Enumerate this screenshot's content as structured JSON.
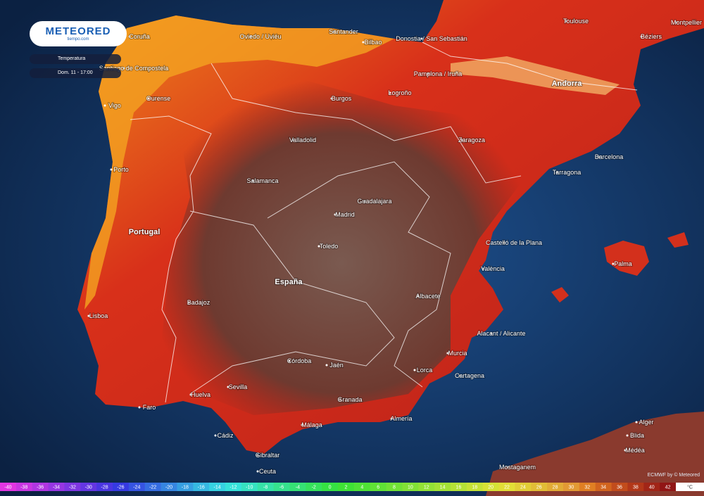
{
  "logo": {
    "brand": "METEORED",
    "site": "tiempo.com"
  },
  "panel": {
    "variable": "Temperatura",
    "time": "Dom. 11 - 17:00"
  },
  "labels": {
    "countries": [
      "Portugal",
      "España",
      "Andorra"
    ],
    "cities": [
      "Coruña",
      "Oviedo / Uviéu",
      "Santander",
      "Bilbao",
      "Donostia / San Sebastián",
      "Toulouse",
      "Montpellier",
      "Béziers",
      "Santiago de Compostela",
      "Pamplona / Iruña",
      "Ourense",
      "Vigo",
      "Burgos",
      "Logroño",
      "Valladolid",
      "Zaragoza",
      "Barcelona",
      "Tarragona",
      "Porto",
      "Salamanca",
      "Guadalajara",
      "Madrid",
      "Castelló de la Plana",
      "Toledo",
      "València",
      "Palma",
      "Badajoz",
      "Albacete",
      "Lisboa",
      "Alacant / Alicante",
      "Córdoba",
      "Jaén",
      "Murcia",
      "Lorca",
      "Cartagena",
      "Sevilla",
      "Granada",
      "Huelva",
      "Faro",
      "Almería",
      "Málaga",
      "Cádiz",
      "Gibraltar",
      "Ceuta",
      "Alger",
      "Blida",
      "Médéa",
      "Mostaganem"
    ]
  },
  "legend": {
    "ticks": [
      -40,
      -38,
      -36,
      -34,
      -32,
      -30,
      -28,
      -26,
      -24,
      -22,
      -20,
      -18,
      -16,
      -14,
      -12,
      -10,
      -8,
      -6,
      -4,
      -2,
      0,
      2,
      4,
      6,
      8,
      10,
      12,
      14,
      16,
      18,
      20,
      22,
      24,
      26,
      28,
      30,
      32,
      34,
      36,
      38,
      40,
      42
    ],
    "unit": "°C"
  },
  "attribution": "ECMWF by © Meteored"
}
